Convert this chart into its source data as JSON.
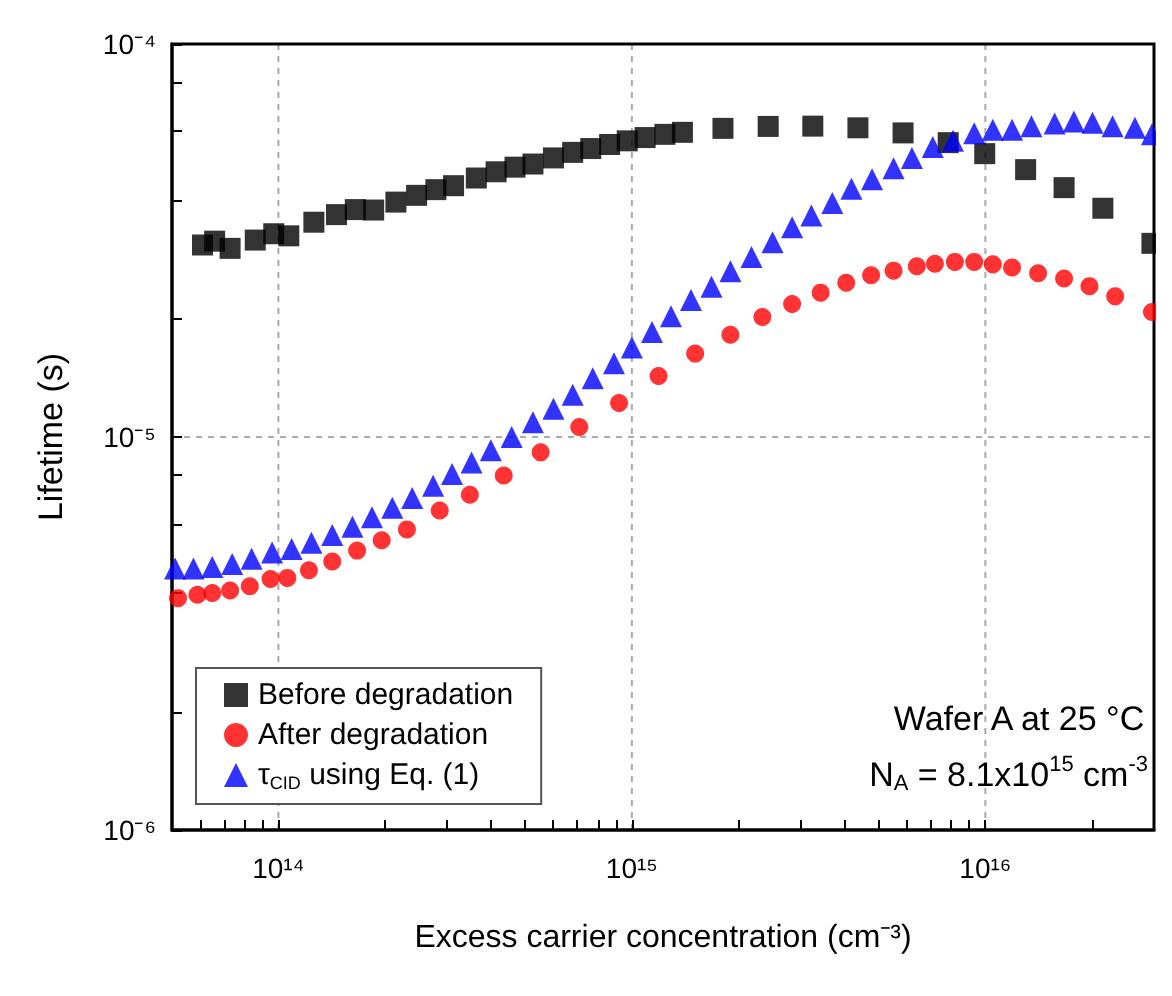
{
  "chart_data": {
    "type": "scatter",
    "xlabel": "Excess carrier concentration (cm⁻³)",
    "ylabel": "Lifetime (s)",
    "log": "xy",
    "grid": true,
    "legend": "bottom left",
    "xlim": [
      50000000000000.0,
      3e+16
    ],
    "ylim": [
      1e-06,
      0.0001
    ],
    "xticks": [
      {
        "value": 60000000000000.0,
        "label": null
      },
      {
        "value": 70000000000000.0,
        "label": null
      },
      {
        "value": 80000000000000.0,
        "label": null
      },
      {
        "value": 90000000000000.0,
        "label": null
      },
      {
        "value": 100000000000000.0,
        "label": "10¹⁴"
      },
      {
        "value": 200000000000000.0,
        "label": null
      },
      {
        "value": 300000000000000.0,
        "label": null
      },
      {
        "value": 400000000000000.0,
        "label": null
      },
      {
        "value": 500000000000000.0,
        "label": null
      },
      {
        "value": 600000000000000.0,
        "label": null
      },
      {
        "value": 700000000000000.0,
        "label": null
      },
      {
        "value": 800000000000000.0,
        "label": null
      },
      {
        "value": 900000000000000.0,
        "label": null
      },
      {
        "value": 1000000000000000.0,
        "label": "10¹⁵"
      },
      {
        "value": 2000000000000000.0,
        "label": null
      },
      {
        "value": 3000000000000000.0,
        "label": null
      },
      {
        "value": 4000000000000000.0,
        "label": null
      },
      {
        "value": 5000000000000000.0,
        "label": null
      },
      {
        "value": 6000000000000000.0,
        "label": null
      },
      {
        "value": 7000000000000000.0,
        "label": null
      },
      {
        "value": 8000000000000000.0,
        "label": null
      },
      {
        "value": 9000000000000000.0,
        "label": null
      },
      {
        "value": 1e+16,
        "label": "10¹⁶"
      },
      {
        "value": 2e+16,
        "label": null
      }
    ],
    "yticks": [
      {
        "value": 1e-06,
        "label": "10⁻⁶"
      },
      {
        "value": 2e-06,
        "label": null
      },
      {
        "value": 4e-06,
        "label": null
      },
      {
        "value": 6e-06,
        "label": null
      },
      {
        "value": 8e-06,
        "label": null
      },
      {
        "value": 1e-05,
        "label": "10⁻⁵"
      },
      {
        "value": 2e-05,
        "label": null
      },
      {
        "value": 4e-05,
        "label": null
      },
      {
        "value": 6e-05,
        "label": null
      },
      {
        "value": 8e-05,
        "label": null
      },
      {
        "value": 0.0001,
        "label": "10⁻⁴"
      }
    ],
    "annotations": [
      "Wafer A at 25 °C",
      "N$_{A}$ = 8.1x10$^{15}$ cm$^{-3}$"
    ],
    "series": [
      {
        "name": "Before degradation",
        "color": "#000000",
        "marker": "square",
        "x": [
          61000000000000.0,
          66000000000000.0,
          73000000000000.0,
          86000000000000.0,
          97000000000000.0,
          107000000000000.0,
          126000000000000.0,
          146000000000000.0,
          165000000000000.0,
          186000000000000.0,
          215000000000000.0,
          246000000000000.0,
          279000000000000.0,
          313000000000000.0,
          363000000000000.0,
          413000000000000.0,
          467000000000000.0,
          525000000000000.0,
          600000000000000.0,
          680000000000000.0,
          765000000000000.0,
          865000000000000.0,
          970000000000000.0,
          1090000000000000.0,
          1240000000000000.0,
          1390000000000000.0,
          1810000000000000.0,
          2430000000000000.0,
          3250000000000000.0,
          4360000000000000.0,
          5850000000000000.0,
          7850000000000000.0,
          9960000000000000.0,
          1.3e+16,
          1.67e+16,
          2.15e+16,
          2.96e+16
        ],
        "values": [
          3.08e-05,
          3.15e-05,
          3.02e-05,
          3.17e-05,
          3.29e-05,
          3.25e-05,
          3.52e-05,
          3.68e-05,
          3.79e-05,
          3.78e-05,
          3.96e-05,
          4.12e-05,
          4.26e-05,
          4.36e-05,
          4.56e-05,
          4.73e-05,
          4.86e-05,
          4.95e-05,
          5.13e-05,
          5.3e-05,
          5.42e-05,
          5.55e-05,
          5.67e-05,
          5.78e-05,
          5.89e-05,
          5.96e-05,
          6.1e-05,
          6.17e-05,
          6.18e-05,
          6.12e-05,
          5.94e-05,
          5.61e-05,
          5.26e-05,
          4.79e-05,
          4.31e-05,
          3.82e-05,
          3.11e-05
        ]
      },
      {
        "name": "After degradation",
        "color": "#ff0000",
        "marker": "circle",
        "x": [
          52000000000000.0,
          59000000000000.0,
          65000000000000.0,
          73000000000000.0,
          83000000000000.0,
          95000000000000.0,
          106000000000000.0,
          122000000000000.0,
          142000000000000.0,
          167000000000000.0,
          196000000000000.0,
          231000000000000.0,
          286000000000000.0,
          348000000000000.0,
          434000000000000.0,
          552000000000000.0,
          710000000000000.0,
          920000000000000.0,
          1190000000000000.0,
          1510000000000000.0,
          1900000000000000.0,
          2340000000000000.0,
          2840000000000000.0,
          3420000000000000.0,
          4040000000000000.0,
          4750000000000000.0,
          5500000000000000.0,
          6400000000000000.0,
          7200000000000000.0,
          8200000000000000.0,
          9300000000000000.0,
          1.05e+16,
          1.19e+16,
          1.41e+16,
          1.67e+16,
          1.97e+16,
          2.33e+16,
          2.96e+16
        ],
        "values": [
          3.89e-06,
          3.97e-06,
          4.01e-06,
          4.07e-06,
          4.17e-06,
          4.35e-06,
          4.38e-06,
          4.58e-06,
          4.82e-06,
          5.14e-06,
          5.46e-06,
          5.82e-06,
          6.5e-06,
          7.13e-06,
          7.98e-06,
          9.14e-06,
          1.06e-05,
          1.22e-05,
          1.43e-05,
          1.63e-05,
          1.82e-05,
          2.02e-05,
          2.18e-05,
          2.33e-05,
          2.47e-05,
          2.58e-05,
          2.65e-05,
          2.72e-05,
          2.76e-05,
          2.79e-05,
          2.79e-05,
          2.75e-05,
          2.7e-05,
          2.61e-05,
          2.53e-05,
          2.42e-05,
          2.28e-05,
          2.08e-05
        ]
      },
      {
        "name": "τ$_{CID}$ using Eq. (1)",
        "color": "#0000ff",
        "marker": "triangle",
        "x": [
          51000000000000.0,
          57500000000000.0,
          65000000000000.0,
          74000000000000.0,
          84000000000000.0,
          96000000000000.0,
          109000000000000.0,
          124000000000000.0,
          142000000000000.0,
          162000000000000.0,
          184000000000000.0,
          210000000000000.0,
          239000000000000.0,
          274000000000000.0,
          310000000000000.0,
          352000000000000.0,
          399000000000000.0,
          457000000000000.0,
          525000000000000.0,
          600000000000000.0,
          680000000000000.0,
          775000000000000.0,
          890000000000000.0,
          1000000000000000.0,
          1140000000000000.0,
          1290000000000000.0,
          1470000000000000.0,
          1680000000000000.0,
          1900000000000000.0,
          2180000000000000.0,
          2500000000000000.0,
          2840000000000000.0,
          3220000000000000.0,
          3690000000000000.0,
          4180000000000000.0,
          4780000000000000.0,
          5500000000000000.0,
          6200000000000000.0,
          7100000000000000.0,
          8100000000000000.0,
          9300000000000000.0,
          1.05e+16,
          1.19e+16,
          1.35e+16,
          1.57e+16,
          1.78e+16,
          2.01e+16,
          2.29e+16,
          2.65e+16,
          2.96e+16
        ],
        "values": [
          4.63e-06,
          4.63e-06,
          4.67e-06,
          4.75e-06,
          4.9e-06,
          5.08e-06,
          5.19e-06,
          5.38e-06,
          5.63e-06,
          5.91e-06,
          6.25e-06,
          6.61e-06,
          7e-06,
          7.52e-06,
          8.05e-06,
          8.61e-06,
          9.25e-06,
          1e-05,
          1.09e-05,
          1.18e-05,
          1.28e-05,
          1.41e-05,
          1.54e-05,
          1.69e-05,
          1.85e-05,
          2.03e-05,
          2.23e-05,
          2.41e-05,
          2.64e-05,
          2.87e-05,
          3.13e-05,
          3.42e-05,
          3.66e-05,
          3.94e-05,
          4.28e-05,
          4.53e-05,
          4.83e-05,
          5.13e-05,
          5.47e-05,
          5.67e-05,
          5.93e-05,
          6.05e-05,
          6.05e-05,
          6.18e-05,
          6.28e-05,
          6.35e-05,
          6.3e-05,
          6.18e-05,
          6.12e-05,
          5.89e-05
        ]
      }
    ]
  }
}
